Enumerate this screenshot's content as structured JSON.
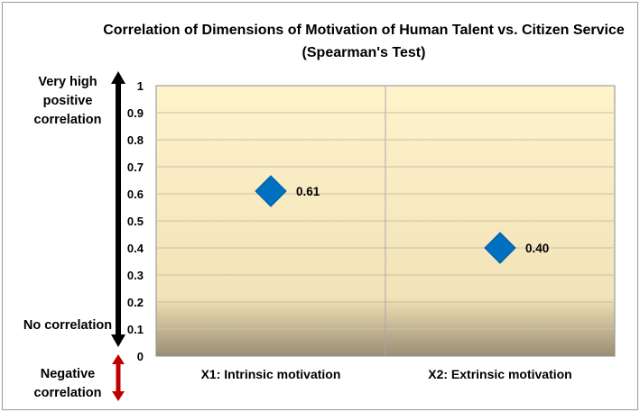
{
  "chart_data": {
    "type": "scatter",
    "title": "Correlation of Dimensions of Motivation of Human Talent vs. Citizen Service (Spearman's Test)",
    "categories": [
      "X1: Intrinsic motivation",
      "X2: Extrinsic motivation"
    ],
    "values": [
      0.61,
      0.4
    ],
    "data_labels": [
      "0.61",
      "0.40"
    ],
    "ylim": [
      0,
      1
    ],
    "yticks": [
      "0",
      "0.1",
      "0.2",
      "0.3",
      "0.4",
      "0.5",
      "0.6",
      "0.7",
      "0.8",
      "0.9",
      "1"
    ],
    "grid": true,
    "marker": "diamond",
    "colors": {
      "marker": "#0070c0",
      "plot_top": "#fff3cc",
      "plot_bottom": "#9b8e73",
      "gridline": "#c8c0a8",
      "positive_arrow": "#000000",
      "negative_arrow": "#c00000"
    },
    "annotations": {
      "high": "Very high positive correlation",
      "none": "No correlation",
      "negative": "Negative correlation"
    }
  }
}
